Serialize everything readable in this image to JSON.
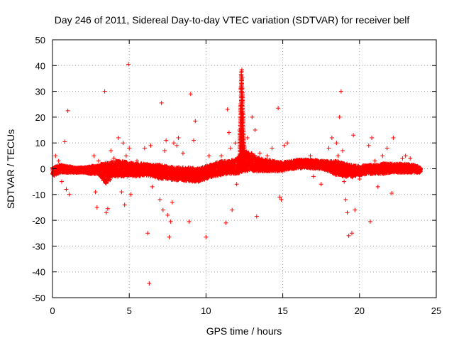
{
  "chart_data": {
    "type": "scatter",
    "title": "Day 246 of 2011, Sidereal Day-to-day VTEC variation (SDTVAR) for receiver belf",
    "xlabel": "GPS time / hours",
    "ylabel": "SDTVAR / TECUs",
    "xlim": [
      0,
      25
    ],
    "ylim": [
      -50,
      50
    ],
    "x_ticks": [
      0,
      5,
      10,
      15,
      20,
      25
    ],
    "x_tick_labels": [
      "0",
      "5",
      "10",
      "15",
      "20",
      "25"
    ],
    "y_ticks": [
      -50,
      -40,
      -30,
      -20,
      -10,
      0,
      10,
      20,
      30,
      40,
      50
    ],
    "y_tick_labels": [
      "-50",
      "-40",
      "-30",
      "-20",
      "-10",
      "0",
      "10",
      "20",
      "30",
      "40",
      "50"
    ],
    "grid": true,
    "marker": "+",
    "color": "#ff0000",
    "series": [
      {
        "name": "SDTVAR",
        "band": [
          [
            0.0,
            -3,
            0.5
          ],
          [
            0.5,
            -1.5,
            1.5
          ],
          [
            1.0,
            -1.5,
            1.0
          ],
          [
            1.5,
            -1.5,
            0.5
          ],
          [
            2.0,
            -1.5,
            0.5
          ],
          [
            2.5,
            -2.0,
            1.0
          ],
          [
            3.0,
            -2.0,
            1.5
          ],
          [
            3.5,
            -6.0,
            2.5
          ],
          [
            4.0,
            -3.0,
            3.0
          ],
          [
            4.5,
            -3.0,
            3.0
          ],
          [
            5.0,
            -3.0,
            2.5
          ],
          [
            5.5,
            -3.0,
            2.0
          ],
          [
            6.0,
            -2.5,
            2.0
          ],
          [
            6.5,
            -3.0,
            1.5
          ],
          [
            7.0,
            -4.0,
            1.5
          ],
          [
            7.5,
            -4.0,
            1.0
          ],
          [
            8.0,
            -4.5,
            0.5
          ],
          [
            8.5,
            -4.5,
            0.5
          ],
          [
            9.0,
            -5.0,
            0.5
          ],
          [
            9.5,
            -5.0,
            0.0
          ],
          [
            10.0,
            -4.0,
            1.0
          ],
          [
            10.5,
            -3.0,
            2.0
          ],
          [
            11.0,
            -2.5,
            3.0
          ],
          [
            11.5,
            -2.0,
            3.0
          ],
          [
            12.0,
            -2.0,
            4.0
          ],
          [
            12.5,
            -1.0,
            7.0
          ],
          [
            13.0,
            -1.0,
            6.0
          ],
          [
            13.5,
            -1.0,
            4.0
          ],
          [
            14.0,
            -1.0,
            3.5
          ],
          [
            14.5,
            -1.0,
            3.0
          ],
          [
            15.0,
            -1.0,
            2.5
          ],
          [
            15.5,
            0.0,
            3.0
          ],
          [
            16.0,
            0.0,
            3.5
          ],
          [
            16.5,
            0.5,
            3.5
          ],
          [
            17.0,
            0.0,
            3.5
          ],
          [
            17.5,
            0.0,
            3.0
          ],
          [
            18.0,
            -1.0,
            3.0
          ],
          [
            18.5,
            -2.5,
            3.0
          ],
          [
            19.0,
            -3.0,
            2.5
          ],
          [
            19.5,
            -3.5,
            1.5
          ],
          [
            20.0,
            -2.5,
            1.0
          ],
          [
            20.5,
            -2.0,
            1.5
          ],
          [
            21.0,
            -2.0,
            1.5
          ],
          [
            21.5,
            -2.0,
            2.0
          ],
          [
            22.0,
            -1.5,
            2.0
          ],
          [
            22.5,
            -1.5,
            2.0
          ],
          [
            23.0,
            -1.5,
            2.0
          ],
          [
            23.5,
            -1.5,
            1.5
          ],
          [
            24.0,
            -1.5,
            0.5
          ]
        ],
        "spike": [
          [
            12.15,
            5
          ],
          [
            12.2,
            15
          ],
          [
            12.25,
            25
          ],
          [
            12.28,
            32
          ],
          [
            12.3,
            37
          ],
          [
            12.32,
            39
          ],
          [
            12.35,
            36
          ],
          [
            12.38,
            30
          ],
          [
            12.42,
            22
          ],
          [
            12.45,
            15
          ],
          [
            12.5,
            10
          ],
          [
            12.6,
            7
          ]
        ],
        "outliers": [
          [
            0.2,
            5
          ],
          [
            0.4,
            3
          ],
          [
            0.6,
            -5
          ],
          [
            0.8,
            10.5
          ],
          [
            0.9,
            -8
          ],
          [
            1.0,
            22.5
          ],
          [
            1.1,
            -10
          ],
          [
            2.7,
            5
          ],
          [
            2.8,
            -9
          ],
          [
            2.9,
            -15
          ],
          [
            3.0,
            3
          ],
          [
            3.4,
            30
          ],
          [
            3.5,
            -17
          ],
          [
            3.6,
            -15.5
          ],
          [
            3.8,
            7
          ],
          [
            4.0,
            4
          ],
          [
            4.3,
            12
          ],
          [
            4.5,
            -9
          ],
          [
            4.6,
            10
          ],
          [
            4.7,
            -14
          ],
          [
            4.8,
            5
          ],
          [
            4.95,
            40.5
          ],
          [
            5.0,
            8
          ],
          [
            5.1,
            -10
          ],
          [
            5.5,
            3
          ],
          [
            6.0,
            8
          ],
          [
            6.2,
            -25
          ],
          [
            6.3,
            -44.5
          ],
          [
            6.4,
            9
          ],
          [
            6.5,
            -7
          ],
          [
            6.8,
            -3
          ],
          [
            7.0,
            -12
          ],
          [
            7.1,
            25.5
          ],
          [
            7.2,
            -16
          ],
          [
            7.3,
            7
          ],
          [
            7.4,
            11
          ],
          [
            7.5,
            -18
          ],
          [
            7.6,
            -26.5
          ],
          [
            7.7,
            -20.5
          ],
          [
            7.8,
            -13
          ],
          [
            7.9,
            10
          ],
          [
            8.1,
            9
          ],
          [
            8.2,
            12
          ],
          [
            8.5,
            6
          ],
          [
            8.9,
            -20.5
          ],
          [
            9.0,
            29
          ],
          [
            9.2,
            11
          ],
          [
            9.3,
            18.5
          ],
          [
            9.5,
            -5
          ],
          [
            10.0,
            -26.5
          ],
          [
            10.2,
            5
          ],
          [
            11.0,
            5
          ],
          [
            11.3,
            -21
          ],
          [
            11.4,
            23
          ],
          [
            11.5,
            14
          ],
          [
            11.6,
            8
          ],
          [
            11.7,
            -16
          ],
          [
            11.9,
            10
          ],
          [
            12.0,
            -6
          ],
          [
            12.7,
            12
          ],
          [
            13.0,
            20
          ],
          [
            13.2,
            15
          ],
          [
            13.3,
            -18.5
          ],
          [
            13.5,
            6
          ],
          [
            14.0,
            5
          ],
          [
            14.3,
            8
          ],
          [
            14.7,
            23.5
          ],
          [
            14.8,
            -11
          ],
          [
            14.9,
            -12
          ],
          [
            15.1,
            9
          ],
          [
            15.3,
            10
          ],
          [
            16.8,
            5
          ],
          [
            17.0,
            -3
          ],
          [
            17.5,
            -6
          ],
          [
            18.0,
            8
          ],
          [
            18.2,
            12
          ],
          [
            18.5,
            10
          ],
          [
            18.6,
            5
          ],
          [
            18.7,
            20
          ],
          [
            18.8,
            30
          ],
          [
            18.9,
            7
          ],
          [
            19.0,
            -5
          ],
          [
            19.1,
            -12
          ],
          [
            19.2,
            -17
          ],
          [
            19.3,
            -26
          ],
          [
            19.5,
            -25
          ],
          [
            19.6,
            13
          ],
          [
            19.7,
            -16
          ],
          [
            20.0,
            -4
          ],
          [
            20.6,
            9
          ],
          [
            20.7,
            -20.5
          ],
          [
            20.8,
            12
          ],
          [
            21.0,
            3
          ],
          [
            21.2,
            -7
          ],
          [
            21.5,
            5
          ],
          [
            21.8,
            8
          ],
          [
            22.0,
            2
          ],
          [
            22.1,
            -9.5
          ],
          [
            22.2,
            12
          ],
          [
            22.8,
            4
          ],
          [
            23.0,
            5
          ],
          [
            23.3,
            4
          ]
        ]
      }
    ]
  }
}
